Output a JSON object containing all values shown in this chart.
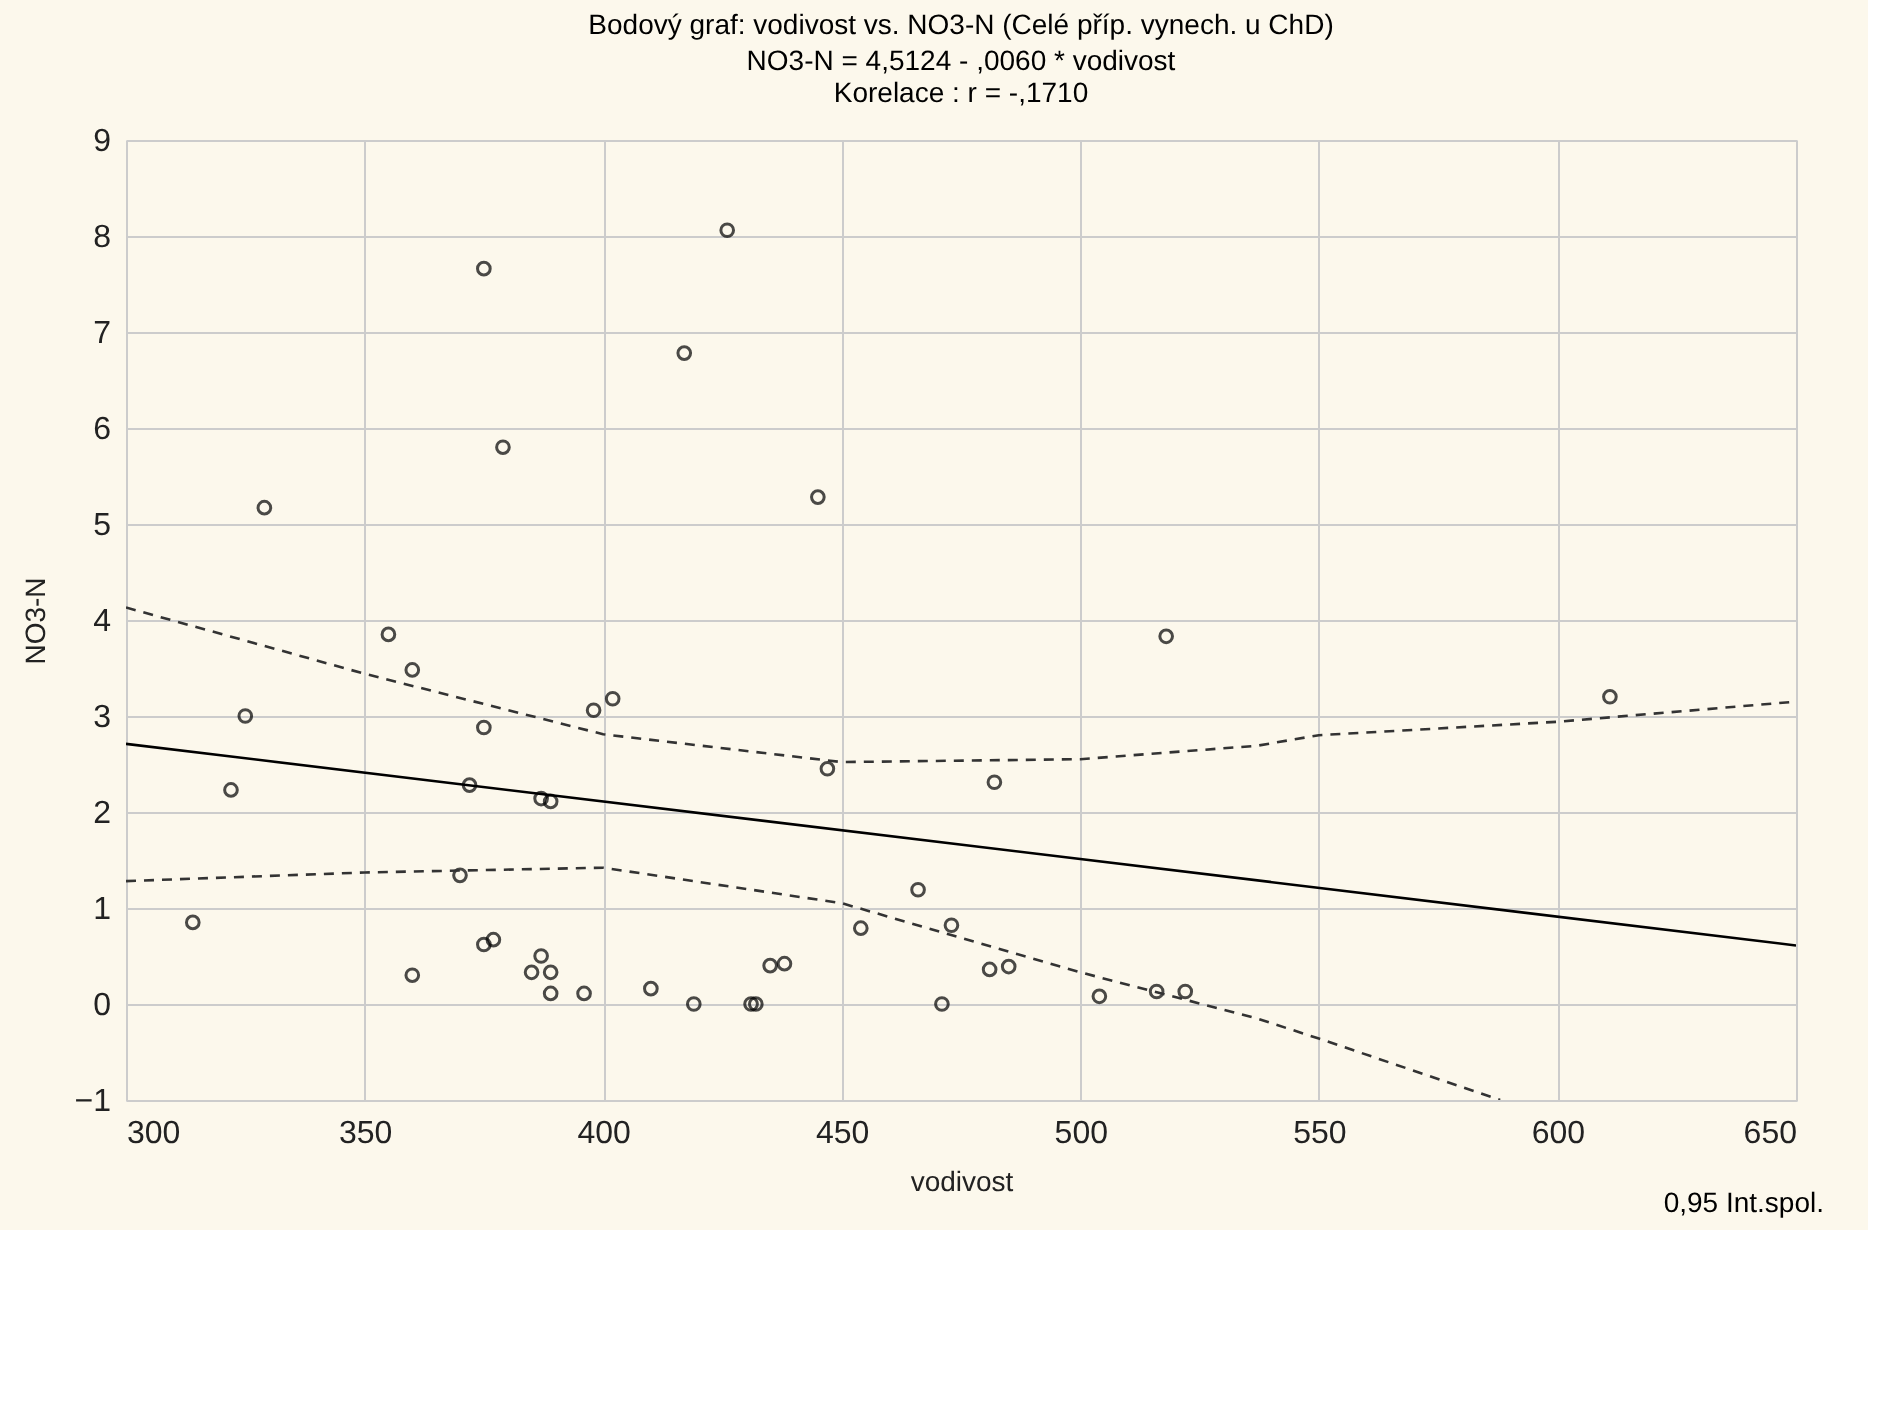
{
  "chart_data": {
    "type": "scatter",
    "title": "Bodový graf: vodivost vs. NO3-N (Celé příp. vynech. u ChD)",
    "subtitle": "NO3-N = 4,5124 - ,0060  * vodivost\nKorelace :  r = -,1710",
    "xlabel": "vodivost",
    "ylabel": "NO3-N",
    "series": [
      {
        "color": "#000000",
        "marker": "circle",
        "x": [
          314,
          322,
          325,
          329,
          355,
          360,
          360,
          370,
          372,
          375,
          375,
          375,
          377,
          379,
          387,
          389,
          387,
          385,
          389,
          389,
          396,
          398,
          402,
          410,
          417,
          426,
          419,
          431,
          432,
          435,
          438,
          445,
          447,
          454,
          466,
          471,
          473,
          482,
          481,
          485,
          504,
          516,
          522,
          518,
          611
        ],
        "values": [
          0.85,
          2.23,
          3.0,
          5.17,
          3.85,
          3.48,
          0.3,
          1.34,
          2.28,
          7.66,
          2.88,
          0.62,
          0.67,
          5.8,
          2.14,
          2.11,
          0.5,
          0.33,
          0.33,
          0.11,
          0.11,
          3.06,
          3.18,
          0.16,
          6.78,
          8.06,
          0.0,
          0.0,
          0.0,
          0.4,
          0.42,
          5.28,
          2.45,
          0.79,
          1.19,
          0.0,
          0.82,
          2.31,
          0.36,
          0.39,
          0.08,
          0.13,
          0.13,
          3.83,
          3.2
        ]
      },
      {
        "type": "line",
        "color": "#000000",
        "line_style": "solid",
        "x": [
          300,
          650
        ],
        "values": [
          2.71,
          0.61
        ]
      },
      {
        "type": "line",
        "color": "#333333",
        "line_style": "dashed",
        "x": [
          300,
          350,
          400,
          450,
          500,
          537,
          550,
          600,
          650
        ],
        "values": [
          4.13,
          3.44,
          2.81,
          2.52,
          2.55,
          2.69,
          2.8,
          2.94,
          3.15
        ]
      },
      {
        "type": "line",
        "color": "#333333",
        "line_style": "dashed",
        "x": [
          300,
          350,
          400,
          450,
          500,
          537,
          550,
          588
        ],
        "values": [
          1.28,
          1.37,
          1.42,
          1.05,
          0.33,
          -0.15,
          -0.36,
          -1.0
        ]
      }
    ],
    "xlim": [
      300,
      650
    ],
    "xticks": [
      300,
      350,
      400,
      450,
      500,
      550,
      600,
      650
    ],
    "ylim": [
      -1,
      9
    ],
    "yticks": [
      -1,
      0,
      1,
      2,
      3,
      4,
      5,
      6,
      7,
      8,
      9
    ],
    "grid": true,
    "annotations": [
      "0,95 Int.spol."
    ]
  }
}
